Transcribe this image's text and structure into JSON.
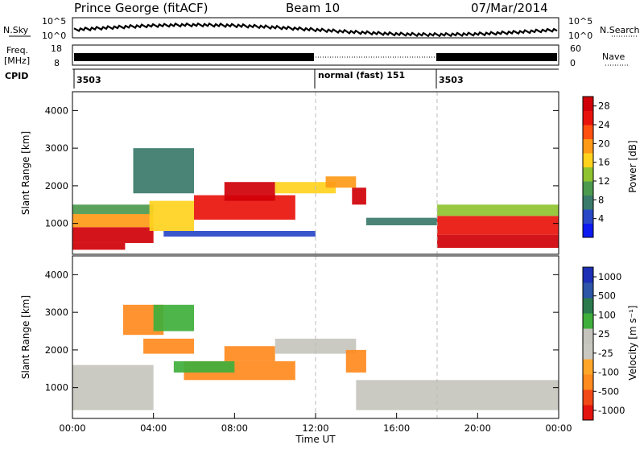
{
  "header": {
    "station": "Prince George (fitACF)",
    "beam": "Beam 10",
    "date": "07/Mar/2014"
  },
  "panels": {
    "nsky": {
      "left_label": "N.Sky",
      "right_label": "N.Search",
      "left_ticks": [
        "10^5",
        "10^0"
      ],
      "right_ticks": [
        "10^5",
        "10^0"
      ]
    },
    "freq": {
      "left_label_1": "Freq.",
      "left_label_2": "[MHz]",
      "right_label": "Nave",
      "left_ticks": [
        "18",
        "8"
      ],
      "right_ticks": [
        "60",
        "0"
      ]
    },
    "cpid": {
      "label": "CPID",
      "segments": [
        {
          "start_h": 0,
          "end_h": 12,
          "label": "3503"
        },
        {
          "start_h": 12,
          "end_h": 18,
          "label": "normal (fast) 151"
        },
        {
          "start_h": 18,
          "end_h": 24,
          "label": "3503"
        }
      ]
    }
  },
  "colors": {
    "power_scale": [
      "#0d1bf0",
      "#2848c8",
      "#3a7a6a",
      "#4c9a4e",
      "#8fc32f",
      "#ffd21e",
      "#ff9a18",
      "#ff5010",
      "#e8140c",
      "#d00008"
    ],
    "velocity_scale": [
      "#e3140e",
      "#f14a16",
      "#ff8a1e",
      "#ffa628",
      "#c8c8c0",
      "#c4c4bc",
      "#3faf3c",
      "#2a7a4e",
      "#2d55a8",
      "#1d2fb4"
    ],
    "gray": "#c6c6be",
    "grid_dash": "#bbbbbb"
  },
  "chart_data": [
    {
      "type": "heatmap",
      "name": "Power",
      "xlabel": "",
      "ylabel": "Slant Range [km]",
      "xlim": [
        0,
        24
      ],
      "ylim": [
        180,
        4500
      ],
      "yticks": [
        1000,
        2000,
        3000,
        4000
      ],
      "colorbar": {
        "label": "Power [dB]",
        "ticks": [
          4,
          8,
          12,
          16,
          20,
          24,
          28
        ],
        "range": [
          0,
          30
        ]
      },
      "regions": [
        {
          "x_h": [
            0.0,
            2.6
          ],
          "y_km": [
            300,
            480
          ],
          "value": 30
        },
        {
          "x_h": [
            0.0,
            4.0
          ],
          "y_km": [
            480,
            900
          ],
          "value": 27
        },
        {
          "x_h": [
            0.0,
            4.0
          ],
          "y_km": [
            900,
            1250
          ],
          "value": 19
        },
        {
          "x_h": [
            0.0,
            4.0
          ],
          "y_km": [
            1250,
            1500
          ],
          "value": 10
        },
        {
          "x_h": [
            3.8,
            6.0
          ],
          "y_km": [
            800,
            1600
          ],
          "value": 15
        },
        {
          "x_h": [
            6.0,
            11.0
          ],
          "y_km": [
            1100,
            1750
          ],
          "value": 25
        },
        {
          "x_h": [
            7.5,
            10.0
          ],
          "y_km": [
            1600,
            2100
          ],
          "value": 28
        },
        {
          "x_h": [
            10.0,
            13.0
          ],
          "y_km": [
            1800,
            2100
          ],
          "value": 17
        },
        {
          "x_h": [
            12.5,
            14.0
          ],
          "y_km": [
            1950,
            2250
          ],
          "value": 20
        },
        {
          "x_h": [
            13.8,
            14.5
          ],
          "y_km": [
            1500,
            1950
          ],
          "value": 27
        },
        {
          "x_h": [
            14.5,
            18.0
          ],
          "y_km": [
            950,
            1150
          ],
          "value": 8
        },
        {
          "x_h": [
            18.0,
            24.0
          ],
          "y_km": [
            350,
            700
          ],
          "value": 30
        },
        {
          "x_h": [
            18.0,
            24.0
          ],
          "y_km": [
            700,
            1200
          ],
          "value": 24
        },
        {
          "x_h": [
            18.0,
            24.0
          ],
          "y_km": [
            1200,
            1500
          ],
          "value": 12
        },
        {
          "x_h": [
            3.0,
            6.0
          ],
          "y_km": [
            1800,
            3000
          ],
          "value": 6
        },
        {
          "x_h": [
            4.5,
            12.0
          ],
          "y_km": [
            650,
            800
          ],
          "value": 5
        }
      ]
    },
    {
      "type": "heatmap",
      "name": "Velocity",
      "xlabel": "Time UT",
      "ylabel": "Slant Range [km]",
      "xlim": [
        0,
        24
      ],
      "ylim": [
        180,
        4500
      ],
      "yticks": [
        1000,
        2000,
        3000,
        4000
      ],
      "xticks": [
        "00:00",
        "04:00",
        "08:00",
        "12:00",
        "16:00",
        "20:00",
        "00:00"
      ],
      "colorbar": {
        "label": "Velocity [m s⁻¹]",
        "ticks": [
          1000,
          500,
          100,
          25,
          -25,
          -100,
          -500,
          -1000
        ]
      },
      "regions": [
        {
          "x_h": [
            0.0,
            4.0
          ],
          "y_km": [
            400,
            1600
          ],
          "value": 0
        },
        {
          "x_h": [
            2.5,
            4.5
          ],
          "y_km": [
            2400,
            3200
          ],
          "value": -300
        },
        {
          "x_h": [
            4.0,
            6.0
          ],
          "y_km": [
            2500,
            3200
          ],
          "value": 400
        },
        {
          "x_h": [
            3.5,
            6.0
          ],
          "y_km": [
            1900,
            2300
          ],
          "value": -150
        },
        {
          "x_h": [
            5.5,
            11.0
          ],
          "y_km": [
            1200,
            1700
          ],
          "value": -200
        },
        {
          "x_h": [
            7.5,
            10.0
          ],
          "y_km": [
            1700,
            2100
          ],
          "value": -350
        },
        {
          "x_h": [
            10.0,
            14.0
          ],
          "y_km": [
            1900,
            2300
          ],
          "value": 0
        },
        {
          "x_h": [
            13.5,
            14.5
          ],
          "y_km": [
            1400,
            2000
          ],
          "value": -250
        },
        {
          "x_h": [
            14.0,
            24.0
          ],
          "y_km": [
            400,
            1200
          ],
          "value": 0
        },
        {
          "x_h": [
            5.0,
            8.0
          ],
          "y_km": [
            1400,
            1700
          ],
          "value": 150
        }
      ]
    }
  ]
}
